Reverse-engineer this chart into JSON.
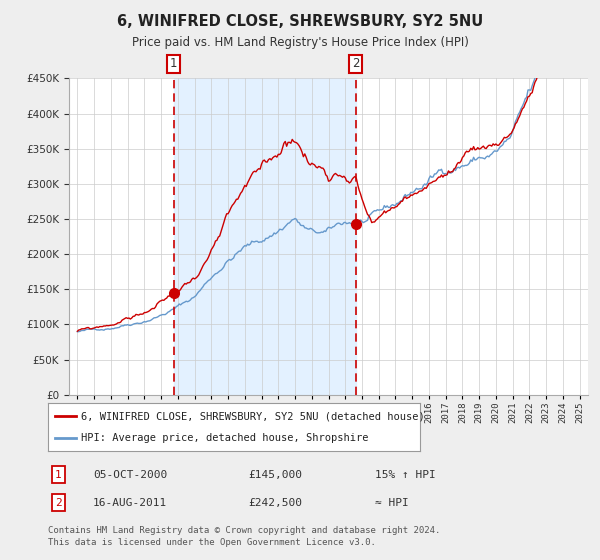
{
  "title": "6, WINIFRED CLOSE, SHREWSBURY, SY2 5NU",
  "subtitle": "Price paid vs. HM Land Registry's House Price Index (HPI)",
  "ylim": [
    0,
    450000
  ],
  "yticks": [
    0,
    50000,
    100000,
    150000,
    200000,
    250000,
    300000,
    350000,
    400000,
    450000
  ],
  "xmin": 1994.5,
  "xmax": 2025.5,
  "bg_color": "#eeeeee",
  "plot_bg_color": "#ffffff",
  "grid_color": "#cccccc",
  "red_line_color": "#cc0000",
  "blue_line_color": "#6699cc",
  "shade_color": "#ddeeff",
  "dashed_line_color": "#cc0000",
  "marker_color": "#cc0000",
  "transaction1_x": 2000.75,
  "transaction1_y": 145000,
  "transaction2_x": 2011.62,
  "transaction2_y": 242500,
  "legend_label1": "6, WINIFRED CLOSE, SHREWSBURY, SY2 5NU (detached house)",
  "legend_label2": "HPI: Average price, detached house, Shropshire",
  "table_row1_num": "1",
  "table_row1_date": "05-OCT-2000",
  "table_row1_price": "£145,000",
  "table_row1_hpi": "15% ↑ HPI",
  "table_row2_num": "2",
  "table_row2_date": "16-AUG-2011",
  "table_row2_price": "£242,500",
  "table_row2_hpi": "≈ HPI",
  "footnote1": "Contains HM Land Registry data © Crown copyright and database right 2024.",
  "footnote2": "This data is licensed under the Open Government Licence v3.0."
}
